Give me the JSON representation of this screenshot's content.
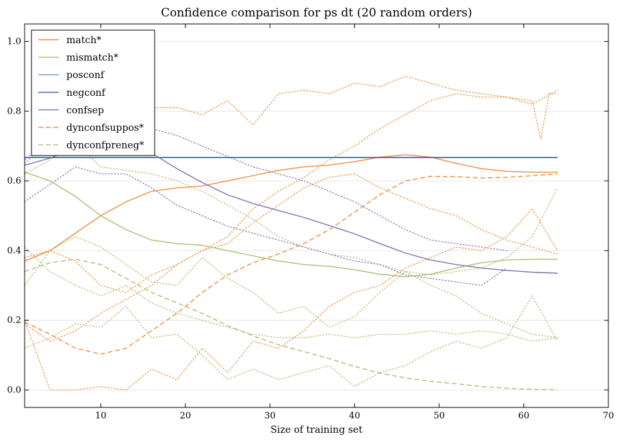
{
  "chart_data": {
    "type": "line",
    "title": "Confidence comparison for ps dt (20 random orders)",
    "xlabel": "Size of training set",
    "ylabel": "",
    "xlim": [
      1,
      70
    ],
    "ylim": [
      -0.05,
      1.05
    ],
    "x_ticks": [
      10,
      20,
      30,
      40,
      50,
      60,
      70
    ],
    "y_ticks": [
      0.0,
      0.2,
      0.4,
      0.6,
      0.8,
      1.0
    ],
    "x_tick_labels": [
      "10",
      "20",
      "30",
      "40",
      "50",
      "60",
      "70"
    ],
    "y_tick_labels": [
      "0.0",
      "0.2",
      "0.4",
      "0.6",
      "0.8",
      "1.0"
    ],
    "grid": "horizontal",
    "legend_position": "top-left",
    "series": [
      {
        "name": "match*",
        "color": "#f08c3c",
        "style": "solid",
        "x": [
          1,
          4,
          7,
          10,
          13,
          16,
          19,
          22,
          25,
          28,
          31,
          34,
          37,
          40,
          43,
          46,
          49,
          52,
          55,
          58,
          61,
          64
        ],
        "y": [
          0.37,
          0.4,
          0.45,
          0.5,
          0.54,
          0.57,
          0.58,
          0.585,
          0.6,
          0.615,
          0.63,
          0.64,
          0.645,
          0.655,
          0.668,
          0.675,
          0.668,
          0.65,
          0.635,
          0.627,
          0.625,
          0.625
        ]
      },
      {
        "name": "mismatch*",
        "color": "#a8bf74",
        "style": "solid",
        "x": [
          1,
          4,
          7,
          10,
          13,
          16,
          19,
          22,
          25,
          28,
          31,
          34,
          37,
          40,
          43,
          46,
          49,
          52,
          55,
          58,
          61,
          64
        ],
        "y": [
          0.625,
          0.6,
          0.555,
          0.5,
          0.46,
          0.43,
          0.42,
          0.415,
          0.4,
          0.385,
          0.37,
          0.36,
          0.355,
          0.345,
          0.332,
          0.325,
          0.332,
          0.35,
          0.365,
          0.373,
          0.375,
          0.375
        ]
      },
      {
        "name": "posconf",
        "color": "#6b9acb",
        "style": "solid",
        "x": [
          1,
          64
        ],
        "y": [
          0.667,
          0.667
        ]
      },
      {
        "name": "negconf",
        "color": "#3f5fbf",
        "style": "solid",
        "x": [
          1,
          64
        ],
        "y": [
          0.667,
          0.667
        ]
      },
      {
        "name": "confsep",
        "color": "#8070b0",
        "style": "solid",
        "x": [
          1,
          4,
          7,
          10,
          13,
          16,
          19,
          22,
          25,
          28,
          31,
          34,
          37,
          40,
          43,
          46,
          49,
          52,
          55,
          58,
          61,
          64
        ],
        "y": [
          0.645,
          0.665,
          0.695,
          0.715,
          0.71,
          0.68,
          0.635,
          0.595,
          0.56,
          0.535,
          0.515,
          0.495,
          0.472,
          0.448,
          0.42,
          0.393,
          0.373,
          0.36,
          0.35,
          0.343,
          0.338,
          0.335
        ]
      },
      {
        "name": "dynconfsuppos*",
        "color": "#f08c3c",
        "style": "dashed",
        "x": [
          1,
          4,
          7,
          10,
          13,
          16,
          19,
          22,
          25,
          28,
          31,
          34,
          37,
          40,
          43,
          46,
          49,
          52,
          55,
          58,
          61,
          64
        ],
        "y": [
          0.195,
          0.16,
          0.12,
          0.103,
          0.12,
          0.17,
          0.22,
          0.28,
          0.33,
          0.365,
          0.39,
          0.42,
          0.46,
          0.51,
          0.56,
          0.6,
          0.613,
          0.612,
          0.608,
          0.61,
          0.615,
          0.62
        ]
      },
      {
        "name": "dynconfpreneg*",
        "color": "#a8bf74",
        "style": "dashed",
        "x": [
          1,
          4,
          7,
          10,
          13,
          16,
          19,
          22,
          25,
          28,
          31,
          34,
          37,
          40,
          43,
          46,
          49,
          52,
          55,
          58,
          61,
          64
        ],
        "y": [
          0.34,
          0.365,
          0.375,
          0.36,
          0.32,
          0.28,
          0.25,
          0.22,
          0.185,
          0.155,
          0.13,
          0.11,
          0.09,
          0.068,
          0.048,
          0.035,
          0.025,
          0.018,
          0.01,
          0.005,
          0.002,
          0.0
        ]
      }
    ],
    "background_traces": [
      {
        "color": "#f08c3c",
        "x": [
          1,
          4,
          7,
          10,
          13,
          16,
          19,
          22,
          25,
          28,
          31,
          34,
          37,
          40,
          43,
          46,
          49,
          52,
          55,
          58,
          61,
          62,
          63,
          64
        ],
        "y": [
          0.65,
          0.71,
          0.79,
          0.78,
          0.8,
          0.81,
          0.81,
          0.79,
          0.83,
          0.76,
          0.85,
          0.86,
          0.85,
          0.88,
          0.87,
          0.9,
          0.88,
          0.86,
          0.85,
          0.84,
          0.83,
          0.72,
          0.85,
          0.85
        ]
      },
      {
        "color": "#f08c3c",
        "x": [
          1,
          4,
          7,
          10,
          13,
          16,
          19,
          22,
          25,
          28,
          31,
          34,
          37,
          40,
          43,
          46,
          49,
          52,
          55,
          58,
          61,
          64
        ],
        "y": [
          0.38,
          0.4,
          0.37,
          0.3,
          0.28,
          0.33,
          0.36,
          0.4,
          0.44,
          0.52,
          0.57,
          0.61,
          0.66,
          0.7,
          0.75,
          0.79,
          0.83,
          0.85,
          0.84,
          0.84,
          0.82,
          0.86
        ]
      },
      {
        "color": "#f08c3c",
        "x": [
          1,
          4,
          7,
          10,
          13,
          16,
          19,
          22,
          25,
          28,
          31,
          34,
          37,
          40,
          43,
          46,
          49,
          52,
          55,
          58,
          61,
          64
        ],
        "y": [
          0.19,
          0.14,
          0.17,
          0.22,
          0.26,
          0.3,
          0.36,
          0.4,
          0.42,
          0.48,
          0.53,
          0.58,
          0.61,
          0.62,
          0.58,
          0.55,
          0.52,
          0.5,
          0.46,
          0.43,
          0.41,
          0.39
        ]
      },
      {
        "color": "#f08c3c",
        "x": [
          1,
          4,
          7,
          10,
          13,
          16,
          19,
          22,
          25,
          28,
          31,
          34,
          37,
          40,
          43,
          46,
          49,
          52,
          55,
          58,
          61,
          64
        ],
        "y": [
          0.2,
          0.0,
          0.0,
          0.01,
          0.0,
          0.06,
          0.03,
          0.12,
          0.05,
          0.14,
          0.12,
          0.17,
          0.24,
          0.28,
          0.3,
          0.35,
          0.38,
          0.41,
          0.4,
          0.44,
          0.52,
          0.4
        ]
      },
      {
        "color": "#a8bf74",
        "x": [
          1,
          4,
          7,
          10,
          13,
          16,
          19,
          22,
          25,
          28,
          31,
          34,
          37,
          40,
          43,
          46,
          49,
          52,
          55,
          58,
          61,
          64
        ],
        "y": [
          0.62,
          0.66,
          0.71,
          0.64,
          0.63,
          0.62,
          0.6,
          0.57,
          0.53,
          0.49,
          0.44,
          0.41,
          0.39,
          0.38,
          0.36,
          0.34,
          0.33,
          0.34,
          0.35,
          0.38,
          0.44,
          0.58
        ]
      },
      {
        "color": "#a8bf74",
        "x": [
          1,
          4,
          7,
          10,
          13,
          16,
          19,
          22,
          25,
          28,
          31,
          34,
          37,
          40,
          43,
          46,
          49,
          52,
          55,
          58,
          61,
          64
        ],
        "y": [
          0.41,
          0.34,
          0.3,
          0.27,
          0.3,
          0.25,
          0.22,
          0.2,
          0.18,
          0.16,
          0.15,
          0.15,
          0.16,
          0.15,
          0.16,
          0.16,
          0.17,
          0.16,
          0.17,
          0.16,
          0.14,
          0.15
        ]
      },
      {
        "color": "#a8bf74",
        "x": [
          1,
          4,
          7,
          10,
          13,
          16,
          19,
          22,
          25,
          28,
          31,
          34,
          37,
          40,
          43,
          46,
          49,
          52,
          55,
          58,
          61,
          64
        ],
        "y": [
          0.12,
          0.15,
          0.19,
          0.18,
          0.24,
          0.15,
          0.16,
          0.1,
          0.03,
          0.06,
          0.03,
          0.05,
          0.07,
          0.01,
          0.05,
          0.07,
          0.11,
          0.14,
          0.12,
          0.15,
          0.27,
          0.14
        ]
      },
      {
        "color": "#a8bf74",
        "x": [
          1,
          4,
          7,
          10,
          13,
          16,
          19,
          22,
          25,
          28,
          31,
          34,
          37,
          40,
          43,
          46,
          49,
          52,
          55,
          58,
          61,
          64
        ],
        "y": [
          0.3,
          0.4,
          0.44,
          0.41,
          0.36,
          0.31,
          0.3,
          0.38,
          0.32,
          0.28,
          0.22,
          0.24,
          0.18,
          0.21,
          0.28,
          0.34,
          0.3,
          0.27,
          0.22,
          0.19,
          0.16,
          0.15
        ]
      },
      {
        "color": "#8070b0",
        "x": [
          1,
          4,
          7,
          10,
          13,
          16,
          19,
          22,
          25,
          28,
          31,
          34,
          37,
          40,
          43,
          46,
          49,
          52,
          55,
          58
        ],
        "y": [
          0.54,
          0.59,
          0.64,
          0.62,
          0.62,
          0.58,
          0.53,
          0.5,
          0.47,
          0.45,
          0.43,
          0.41,
          0.39,
          0.37,
          0.36,
          0.33,
          0.32,
          0.31,
          0.3,
          0.35
        ]
      },
      {
        "color": "#8070b0",
        "x": [
          1,
          4,
          7,
          10,
          13,
          16,
          19,
          22,
          25,
          28,
          31,
          34,
          37,
          40,
          43,
          46,
          49,
          52,
          55,
          58
        ],
        "y": [
          0.66,
          0.72,
          0.75,
          0.75,
          0.76,
          0.75,
          0.73,
          0.7,
          0.67,
          0.64,
          0.62,
          0.6,
          0.57,
          0.54,
          0.5,
          0.46,
          0.43,
          0.42,
          0.41,
          0.4
        ]
      }
    ]
  }
}
